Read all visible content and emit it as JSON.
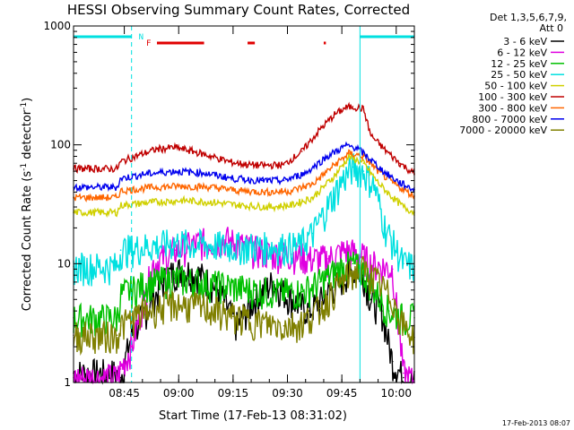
{
  "chart_data": {
    "type": "line",
    "title": "HESSI Observing Summary Count Rates, Corrected",
    "xlabel": "Start Time (17-Feb-13 08:31:02)",
    "ylabel_main": "Corrected Count Rate (s",
    "ylabel_sup1": "-1",
    "ylabel_mid": " detector",
    "ylabel_sup2": "-1",
    "ylabel_end": ")",
    "yscale": "log",
    "ylim": [
      1,
      1000
    ],
    "ytick_labels": [
      "1",
      "10",
      "100",
      "1000"
    ],
    "ytick_values": [
      1,
      10,
      100,
      1000
    ],
    "x_unit": "minutes after 08:31:02",
    "xlim": [
      0,
      94
    ],
    "xtick_labels": [
      "08:45",
      "09:00",
      "09:15",
      "09:30",
      "09:45",
      "10:00"
    ],
    "xtick_values": [
      14,
      29,
      44,
      59,
      74,
      89
    ],
    "grid": false,
    "legend_header": "Det 1,3,5,6,7,9,",
    "legend_header2": "Att 0",
    "legend_position": "right",
    "footer_date": "17-Feb-2013 08:07",
    "flags": {
      "night_label": "N",
      "flare_label": "F",
      "night_intervals": [
        [
          0,
          16
        ],
        [
          79,
          94
        ]
      ],
      "flare_intervals": [
        [
          23,
          36
        ],
        [
          48,
          50
        ],
        [
          69,
          69.6
        ]
      ],
      "night_color": "#00e0e0",
      "flare_color": "#e00000"
    },
    "markers": {
      "dashed_vlines": [
        16,
        94
      ],
      "solid_vlines": [
        79
      ],
      "color": "#00e0e0"
    },
    "series": [
      {
        "name": "3 - 6 keV",
        "color": "#000000",
        "x": [
          0,
          12,
          13,
          16,
          20,
          26,
          30,
          35,
          40,
          45,
          50,
          55,
          60,
          65,
          70,
          75,
          78,
          80,
          82,
          85,
          88,
          91,
          94
        ],
        "values": [
          1.2,
          1.2,
          1.1,
          2.5,
          4,
          8,
          9,
          8,
          6,
          3,
          5,
          7,
          5,
          4,
          5.5,
          8,
          9,
          8,
          5,
          4,
          1.5,
          1.1,
          1
        ]
      },
      {
        "name": "6 - 12 keV",
        "color": "#e000e0",
        "x": [
          0,
          12,
          13,
          16,
          22,
          28,
          35,
          42,
          50,
          55,
          60,
          65,
          70,
          75,
          79,
          82,
          88,
          91,
          94
        ],
        "values": [
          1.1,
          1.1,
          1.3,
          2,
          10,
          13,
          15,
          16,
          13,
          12,
          12,
          11,
          11,
          13,
          12,
          10,
          9,
          1.2,
          1
        ]
      },
      {
        "name": "12 - 25 keV",
        "color": "#00c000",
        "x": [
          0,
          12,
          13,
          20,
          28,
          35,
          42,
          50,
          58,
          63,
          68,
          73,
          77,
          80,
          83,
          87,
          91,
          94
        ],
        "values": [
          3.5,
          3.5,
          5.5,
          6.8,
          7.5,
          7,
          6.5,
          6,
          5.8,
          5.8,
          7,
          9,
          10,
          8.5,
          6,
          4,
          3.5,
          3.5
        ]
      },
      {
        "name": "25 - 50 keV",
        "color": "#00e0e0",
        "x": [
          0,
          12,
          13,
          20,
          28,
          36,
          44,
          52,
          58,
          62,
          66,
          70,
          74,
          77,
          80,
          83,
          86,
          91,
          94
        ],
        "values": [
          9.5,
          9.5,
          13,
          14,
          15,
          14.5,
          14,
          14,
          14,
          14,
          18,
          30,
          50,
          65,
          60,
          45,
          20,
          10,
          9.5
        ]
      },
      {
        "name": "50 - 100 keV",
        "color": "#d0d000",
        "x": [
          0,
          12,
          13,
          22,
          30,
          38,
          46,
          54,
          60,
          66,
          72,
          76,
          80,
          84,
          88,
          91,
          94
        ],
        "values": [
          27,
          27,
          31,
          33,
          34,
          33,
          31,
          30,
          31,
          36,
          55,
          80,
          70,
          48,
          36,
          30,
          27
        ]
      },
      {
        "name": "100 - 300 keV",
        "color": "#c00000",
        "x": [
          0,
          12,
          13,
          18,
          23,
          28,
          33,
          38,
          43,
          48,
          53,
          58,
          63,
          68,
          72,
          75,
          77,
          80,
          82,
          86,
          90,
          94
        ],
        "values": [
          63,
          63,
          72,
          82,
          92,
          95,
          88,
          80,
          72,
          68,
          67,
          68,
          88,
          135,
          180,
          205,
          210,
          200,
          120,
          90,
          70,
          57
        ]
      },
      {
        "name": "300 - 800 keV",
        "color": "#ff6600",
        "x": [
          0,
          12,
          13,
          22,
          30,
          38,
          46,
          54,
          60,
          66,
          72,
          76,
          80,
          84,
          88,
          91,
          94
        ],
        "values": [
          36,
          36,
          41,
          44,
          45,
          44,
          41,
          40,
          41,
          47,
          68,
          85,
          80,
          60,
          48,
          42,
          37
        ]
      },
      {
        "name": "800 - 7000 keV",
        "color": "#0000ee",
        "x": [
          0,
          12,
          13,
          20,
          28,
          36,
          44,
          52,
          58,
          64,
          70,
          75,
          78,
          82,
          86,
          90,
          94
        ],
        "values": [
          44,
          44,
          52,
          57,
          60,
          58,
          52,
          50,
          50,
          58,
          80,
          98,
          95,
          75,
          58,
          48,
          42
        ]
      },
      {
        "name": "7000 - 20000 keV",
        "color": "#808000",
        "x": [
          0,
          12,
          13,
          20,
          28,
          36,
          44,
          52,
          58,
          63,
          68,
          72,
          76,
          80,
          84,
          88,
          91,
          94
        ],
        "values": [
          2.5,
          2.5,
          3,
          4,
          4.6,
          4.3,
          3.6,
          3.2,
          3,
          3.2,
          4.2,
          6,
          8,
          9,
          7,
          5,
          3,
          2.4
        ]
      }
    ]
  }
}
